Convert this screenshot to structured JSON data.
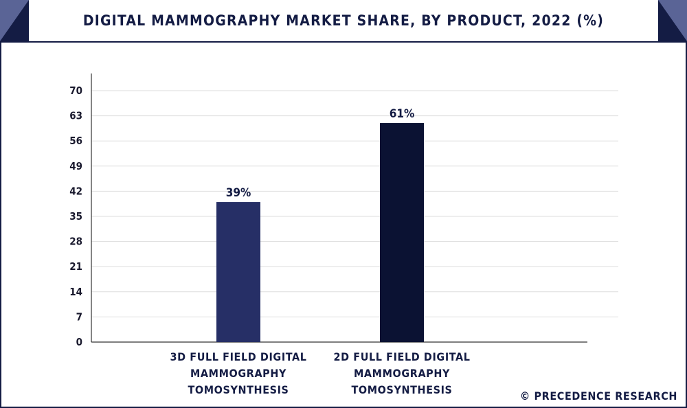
{
  "title": "DIGITAL MAMMOGRAPHY MARKET SHARE, BY PRODUCT, 2022 (%)",
  "watermark": "© PRECEDENCE RESEARCH",
  "colors": {
    "frame": "#141c44",
    "corner_accent": "#5a6496",
    "grid": "#dddddd",
    "axis": "#333333"
  },
  "chart_data": {
    "type": "bar",
    "categories": [
      [
        "3D FULL FIELD DIGITAL",
        "MAMMOGRAPHY",
        "TOMOSYNTHESIS"
      ],
      [
        "2D FULL FIELD DIGITAL",
        "MAMMOGRAPHY",
        "TOMOSYNTHESIS"
      ]
    ],
    "values": [
      39,
      61
    ],
    "data_labels": [
      "39%",
      "61%"
    ],
    "bar_colors": [
      "#262f66",
      "#0b1233"
    ],
    "ylim": [
      0,
      70
    ],
    "yticks": [
      0,
      7,
      14,
      21,
      28,
      35,
      42,
      49,
      56,
      63,
      70
    ],
    "grid": true,
    "legend": false,
    "title": "DIGITAL MAMMOGRAPHY MARKET SHARE, BY PRODUCT, 2022 (%)",
    "xlabel": "",
    "ylabel": ""
  }
}
